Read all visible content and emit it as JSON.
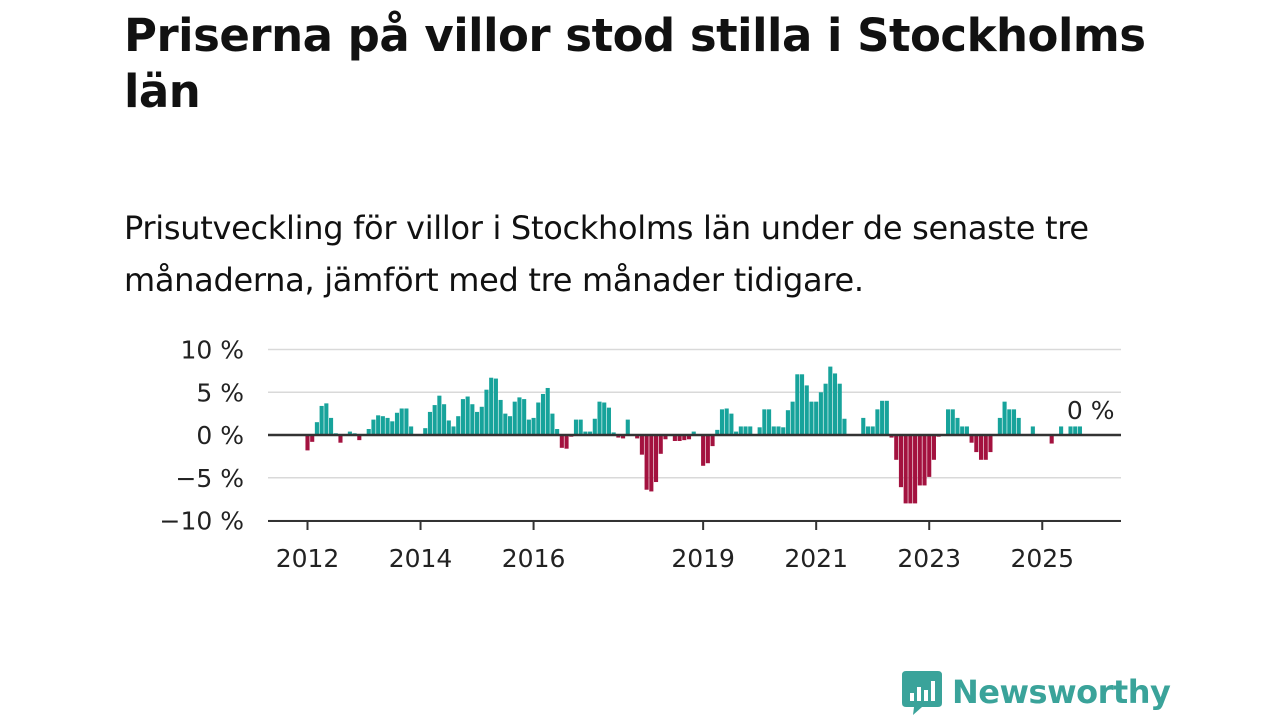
{
  "title": "Priserna på villor stod stilla i Stockholms län",
  "subtitle": "Prisutveckling för villor i Stockholms län under de senaste tre månaderna, jämfört med tre månader tidigare.",
  "brand": {
    "name": "Newsworthy"
  },
  "colors": {
    "positive": "#17a39b",
    "negative": "#a3123f",
    "axis": "#333333",
    "grid": "#d9d9d9",
    "brand": "#3aa39a"
  },
  "chart_data": {
    "type": "bar",
    "unit": "%",
    "ylim": [
      -10,
      10
    ],
    "yticks": [
      10,
      5,
      0,
      -5,
      -10
    ],
    "ytick_labels": [
      "10 %",
      "5 %",
      "0 %",
      "−5 %",
      "−10 %"
    ],
    "xticks": [
      "2012",
      "2014",
      "2016",
      "2019",
      "2021",
      "2023",
      "2025"
    ],
    "grid": true,
    "last_value_label": "0 %",
    "series": [
      {
        "start": "2012-01",
        "values": [
          -1.8,
          -0.8,
          1.5,
          3.4,
          3.7,
          2.0,
          0.2,
          -0.9,
          0,
          0.4,
          0.2,
          -0.6,
          0,
          0.7,
          1.8,
          2.3,
          2.2,
          2.0,
          1.6,
          2.6,
          3.1,
          3.1,
          1.0,
          0,
          0,
          0.8,
          2.7,
          3.5,
          4.6,
          3.6,
          1.7,
          1.0,
          2.2,
          4.2,
          4.5,
          3.6,
          2.7,
          3.3,
          5.3,
          6.7,
          6.6,
          4.1,
          2.5,
          2.2,
          3.9,
          4.4,
          4.2,
          1.8,
          2.0,
          3.8,
          4.8,
          5.5,
          2.5,
          0.7,
          -1.5,
          -1.6,
          -0.2,
          1.8,
          1.8,
          0.4,
          0.4,
          1.9,
          3.9,
          3.8,
          3.2,
          0.3,
          -0.3,
          -0.4,
          1.8,
          0,
          -0.4,
          -2.3,
          -6.4,
          -6.6,
          -5.5,
          -2.2,
          -0.5,
          0,
          -0.7,
          -0.7,
          -0.6,
          -0.5,
          0.4,
          0,
          -3.6,
          -3.3,
          -1.3,
          0.6,
          3.0,
          3.1,
          2.5,
          0.4,
          1.0,
          1.0,
          1.0,
          0,
          0.9,
          3.0,
          3.0,
          1.0,
          1.0,
          0.9,
          2.9,
          3.9,
          7.1,
          7.1,
          5.8,
          3.9,
          3.9,
          5.0,
          6.0,
          8.0,
          7.2,
          6.0,
          1.9,
          0,
          0,
          0,
          2.0,
          1.0,
          1.0,
          3.0,
          4.0,
          4.0,
          -0.3,
          -2.9,
          -6.1,
          -8.0,
          -8.0,
          -8.0,
          -5.9,
          -5.9,
          -4.9,
          -2.9,
          -0.2,
          0,
          3.0,
          3.0,
          2.0,
          1.0,
          1.0,
          -0.9,
          -2.0,
          -2.9,
          -2.9,
          -2.0,
          0,
          2.0,
          3.9,
          3.0,
          3.0,
          2.0,
          0,
          0,
          1.0,
          0,
          0,
          0,
          -1.0,
          0,
          1.0,
          0,
          1.0,
          1.0,
          1.0,
          0
        ]
      }
    ]
  }
}
